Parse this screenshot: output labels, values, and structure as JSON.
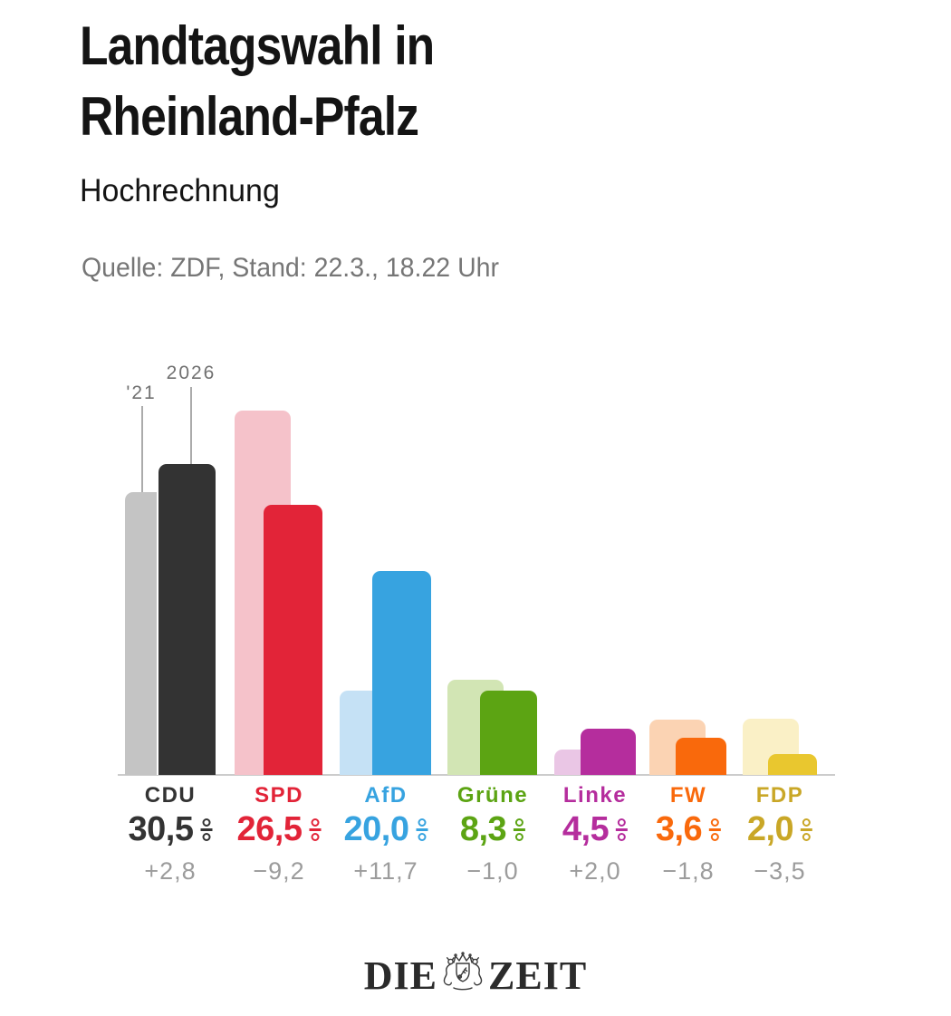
{
  "header": {
    "title_line1": "Landtagswahl in",
    "title_line2": "Rheinland-Pfalz",
    "subtitle": "Hochrechnung",
    "source": "Quelle: ZDF, Stand: 22.3., 18.22 Uhr"
  },
  "chart_data": {
    "type": "bar",
    "title": "Landtagswahl in Rheinland-Pfalz — Hochrechnung",
    "unit": "%",
    "ylim": [
      0,
      36
    ],
    "grid": false,
    "decimal_separator": ",",
    "year_labels": {
      "previous": "'21",
      "current": "2026"
    },
    "categories": [
      "CDU",
      "SPD",
      "AfD",
      "Grüne",
      "Linke",
      "FW",
      "FDP"
    ],
    "series": [
      {
        "name": "'21",
        "values": [
          27.7,
          35.7,
          8.3,
          9.3,
          2.5,
          5.4,
          5.5
        ]
      },
      {
        "name": "2026",
        "values": [
          30.5,
          26.5,
          20.0,
          8.3,
          4.5,
          3.6,
          2.0
        ]
      }
    ],
    "parties": [
      {
        "name": "CDU",
        "value": 30.5,
        "prev_value": 27.7,
        "value_label": "30,5",
        "change_label": "+2,8",
        "color": "#333333",
        "light_color": "#c4c4c4",
        "label_color": "#333333"
      },
      {
        "name": "SPD",
        "value": 26.5,
        "prev_value": 35.7,
        "value_label": "26,5",
        "change_label": "−9,2",
        "color": "#e22438",
        "light_color": "#f5c2ca",
        "label_color": "#e22438"
      },
      {
        "name": "AfD",
        "value": 20.0,
        "prev_value": 8.3,
        "value_label": "20,0",
        "change_label": "+11,7",
        "color": "#37a3e0",
        "light_color": "#c5e1f5",
        "label_color": "#37a3e0"
      },
      {
        "name": "Grüne",
        "value": 8.3,
        "prev_value": 9.3,
        "value_label": "8,3",
        "change_label": "−1,0",
        "color": "#5ca413",
        "light_color": "#d2e5b4",
        "label_color": "#5ca413"
      },
      {
        "name": "Linke",
        "value": 4.5,
        "prev_value": 2.5,
        "value_label": "4,5",
        "change_label": "+2,0",
        "color": "#b52d9d",
        "light_color": "#eac6e5",
        "label_color": "#b52d9d"
      },
      {
        "name": "FW",
        "value": 3.6,
        "prev_value": 5.4,
        "value_label": "3,6",
        "change_label": "−1,8",
        "color": "#f9690c",
        "light_color": "#fbd3b3",
        "label_color": "#f9690c"
      },
      {
        "name": "FDP",
        "value": 2.0,
        "prev_value": 5.5,
        "value_label": "2,0",
        "change_label": "−3,5",
        "color": "#e9c72f",
        "light_color": "#faf0c6",
        "label_color": "#c9a727"
      }
    ]
  },
  "footer": {
    "logo_left": "DIE",
    "logo_right": "ZEIT",
    "crest_icon": "zeit-crest"
  }
}
